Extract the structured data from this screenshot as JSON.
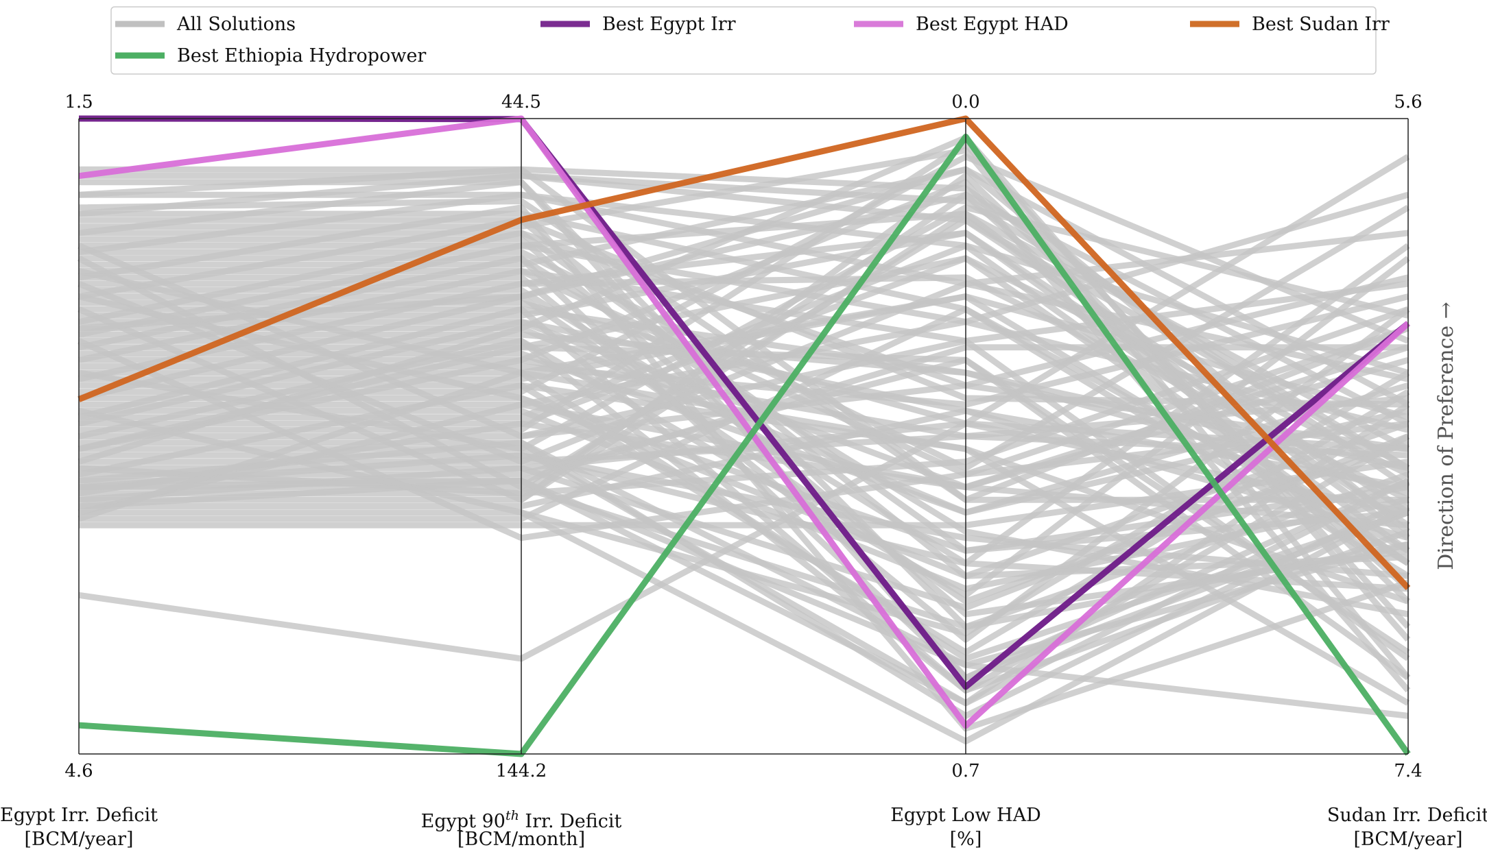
{
  "chart_data": {
    "type": "parallel_coordinates",
    "y_direction_label": "Direction of Preference →",
    "axes": [
      {
        "name": "Egypt Irr. Deficit",
        "unit": "[BCM/year]",
        "top": "1.5",
        "bottom": "4.6",
        "top_value": 1.5,
        "bottom_value": 4.6
      },
      {
        "name": "Egypt 90th Irr. Deficit",
        "name_main": "Egypt 90",
        "name_sup": "th",
        "name_rest": " Irr. Deficit",
        "unit": "[BCM/month]",
        "top": "44.5",
        "bottom": "144.2",
        "top_value": 44.5,
        "bottom_value": 144.2
      },
      {
        "name": "Egypt Low HAD",
        "unit": "[%]",
        "top": "0.0",
        "bottom": "0.7",
        "top_value": 0.0,
        "bottom_value": 0.7
      },
      {
        "name": "Sudan Irr. Deficit",
        "unit": "[BCM/year]",
        "top": "5.6",
        "bottom": "7.4",
        "top_value": 5.6,
        "bottom_value": 7.4
      }
    ],
    "legend": {
      "placement": "top",
      "entries": [
        {
          "label": "All Solutions",
          "color": "#c0c0c0"
        },
        {
          "label": "Best Egypt Irr",
          "color": "#7b2d91"
        },
        {
          "label": "Best Egypt HAD",
          "color": "#d97bd9"
        },
        {
          "label": "Best Sudan Irr",
          "color": "#d0702a"
        },
        {
          "label": "Best Ethiopia Hydropower",
          "color": "#4caf63"
        }
      ]
    },
    "highlighted": [
      {
        "name": "Best Egypt Irr",
        "color": "#6e1a88",
        "values": [
          1.5,
          44.57,
          0.626,
          6.18
        ]
      },
      {
        "name": "Best Egypt HAD",
        "color": "#d86fd8",
        "values": [
          1.78,
          44.5,
          0.669,
          6.18
        ]
      },
      {
        "name": "Best Sudan Irr",
        "color": "#d06520",
        "values": [
          2.87,
          60.4,
          0.0,
          6.93
        ]
      },
      {
        "name": "Best Ethiopia Hydropower",
        "color": "#4caf63",
        "values": [
          4.46,
          144.2,
          0.02,
          7.4
        ]
      }
    ],
    "all_solutions_color": "#c4c4c4",
    "all_solutions_fraction": [
      [
        0.08,
        0.08,
        0.11,
        0.58
      ],
      [
        0.09,
        0.09,
        0.13,
        0.55
      ],
      [
        0.1,
        0.1,
        0.88,
        0.62
      ],
      [
        0.12,
        0.12,
        0.2,
        0.4
      ],
      [
        0.14,
        0.13,
        0.6,
        0.33
      ],
      [
        0.15,
        0.15,
        0.3,
        0.72
      ],
      [
        0.16,
        0.16,
        0.72,
        0.48
      ],
      [
        0.17,
        0.17,
        0.05,
        0.88
      ],
      [
        0.18,
        0.18,
        0.42,
        0.25
      ],
      [
        0.19,
        0.19,
        0.78,
        0.68
      ],
      [
        0.2,
        0.2,
        0.15,
        0.52
      ],
      [
        0.21,
        0.21,
        0.55,
        0.14
      ],
      [
        0.22,
        0.22,
        0.65,
        0.78
      ],
      [
        0.23,
        0.23,
        0.08,
        0.45
      ],
      [
        0.24,
        0.24,
        0.35,
        0.85
      ],
      [
        0.25,
        0.25,
        0.82,
        0.3
      ],
      [
        0.26,
        0.26,
        0.25,
        0.6
      ],
      [
        0.27,
        0.27,
        0.7,
        0.2
      ],
      [
        0.28,
        0.28,
        0.12,
        0.74
      ],
      [
        0.29,
        0.29,
        0.48,
        0.06
      ],
      [
        0.3,
        0.3,
        0.9,
        0.5
      ],
      [
        0.31,
        0.31,
        0.18,
        0.64
      ],
      [
        0.32,
        0.32,
        0.58,
        0.38
      ],
      [
        0.33,
        0.33,
        0.03,
        0.82
      ],
      [
        0.34,
        0.34,
        0.4,
        0.55
      ],
      [
        0.35,
        0.35,
        0.75,
        0.22
      ],
      [
        0.36,
        0.36,
        0.22,
        0.7
      ],
      [
        0.37,
        0.37,
        0.62,
        0.42
      ],
      [
        0.38,
        0.38,
        0.1,
        0.9
      ],
      [
        0.39,
        0.39,
        0.45,
        0.28
      ],
      [
        0.4,
        0.4,
        0.85,
        0.62
      ],
      [
        0.41,
        0.41,
        0.28,
        0.47
      ],
      [
        0.42,
        0.42,
        0.52,
        0.76
      ],
      [
        0.43,
        0.43,
        0.06,
        0.35
      ],
      [
        0.44,
        0.44,
        0.68,
        0.58
      ],
      [
        0.45,
        0.45,
        0.32,
        0.12
      ],
      [
        0.3,
        0.6,
        0.15,
        0.66
      ],
      [
        0.26,
        0.54,
        0.5,
        0.44
      ],
      [
        0.22,
        0.58,
        0.8,
        0.56
      ],
      [
        0.2,
        0.5,
        0.35,
        0.26
      ],
      [
        0.46,
        0.46,
        0.74,
        0.6
      ],
      [
        0.47,
        0.47,
        0.2,
        0.7
      ],
      [
        0.48,
        0.48,
        0.58,
        0.36
      ],
      [
        0.49,
        0.49,
        0.04,
        0.8
      ],
      [
        0.5,
        0.5,
        0.42,
        0.52
      ],
      [
        0.51,
        0.51,
        0.86,
        0.67
      ],
      [
        0.52,
        0.52,
        0.14,
        0.31
      ],
      [
        0.53,
        0.53,
        0.66,
        0.72
      ],
      [
        0.54,
        0.54,
        0.26,
        0.18
      ],
      [
        0.55,
        0.55,
        0.77,
        0.5
      ],
      [
        0.56,
        0.56,
        0.38,
        0.84
      ],
      [
        0.57,
        0.57,
        0.92,
        0.45
      ],
      [
        0.58,
        0.58,
        0.16,
        0.62
      ],
      [
        0.59,
        0.59,
        0.54,
        0.3
      ],
      [
        0.6,
        0.6,
        0.09,
        0.76
      ],
      [
        0.61,
        0.61,
        0.46,
        0.58
      ],
      [
        0.62,
        0.62,
        0.81,
        0.4
      ],
      [
        0.63,
        0.63,
        0.3,
        0.68
      ],
      [
        0.64,
        0.64,
        0.64,
        0.54
      ],
      [
        0.6,
        0.55,
        0.48,
        0.62
      ],
      [
        0.55,
        0.59,
        0.12,
        0.48
      ],
      [
        0.58,
        0.53,
        0.7,
        0.74
      ],
      [
        0.61,
        0.57,
        0.36,
        0.36
      ],
      [
        0.57,
        0.51,
        0.94,
        0.6
      ],
      [
        0.62,
        0.45,
        0.58,
        0.64
      ],
      [
        0.59,
        0.48,
        0.22,
        0.56
      ],
      [
        0.56,
        0.42,
        0.84,
        0.43
      ],
      [
        0.63,
        0.4,
        0.28,
        0.7
      ],
      [
        0.52,
        0.38,
        0.5,
        0.53
      ],
      [
        0.5,
        0.35,
        0.9,
        0.65
      ],
      [
        0.54,
        0.33,
        0.62,
        0.46
      ],
      [
        0.47,
        0.3,
        0.4,
        0.59
      ],
      [
        0.44,
        0.28,
        0.76,
        0.51
      ],
      [
        0.41,
        0.26,
        0.18,
        0.68
      ],
      [
        0.38,
        0.24,
        0.56,
        0.33
      ],
      [
        0.36,
        0.22,
        0.88,
        0.57
      ],
      [
        0.34,
        0.2,
        0.32,
        0.49
      ],
      [
        0.32,
        0.18,
        0.68,
        0.62
      ],
      [
        0.28,
        0.16,
        0.44,
        0.45
      ],
      [
        0.25,
        0.14,
        0.96,
        0.73
      ],
      [
        0.21,
        0.12,
        0.26,
        0.41
      ],
      [
        0.18,
        0.1,
        0.8,
        0.67
      ],
      [
        0.15,
        0.09,
        0.16,
        0.55
      ],
      [
        0.12,
        0.08,
        0.6,
        0.6
      ],
      [
        0.75,
        0.85,
        0.48,
        0.52
      ],
      [
        0.58,
        0.57,
        0.86,
        0.94
      ],
      [
        0.35,
        0.66,
        0.56,
        0.48
      ],
      [
        0.28,
        0.44,
        0.72,
        0.69
      ],
      [
        0.52,
        0.36,
        0.38,
        0.88
      ],
      [
        0.4,
        0.52,
        0.92,
        0.57
      ],
      [
        0.33,
        0.28,
        0.08,
        0.65
      ],
      [
        0.46,
        0.62,
        0.98,
        0.61
      ],
      [
        0.24,
        0.4,
        0.52,
        0.92
      ],
      [
        0.48,
        0.32,
        0.46,
        0.66
      ]
    ]
  }
}
